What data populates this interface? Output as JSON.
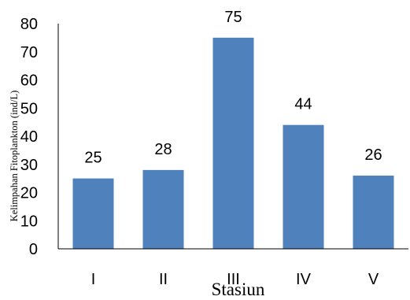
{
  "chart_data": {
    "type": "bar",
    "categories": [
      "I",
      "II",
      "III",
      "IV",
      "V"
    ],
    "values": [
      25,
      28,
      75,
      44,
      26
    ],
    "data_labels": [
      "25",
      "28",
      "75",
      "44",
      "26"
    ],
    "title": "",
    "xlabel": "Stasiun",
    "ylabel": "Kelimpahan Fitoplankton (ind/L)",
    "ylim": [
      0,
      80
    ],
    "yticks": [
      "0",
      "10",
      "20",
      "30",
      "40",
      "50",
      "60",
      "70",
      "80"
    ],
    "grid": false,
    "legend": "none",
    "bar_color": "#4F81BD"
  }
}
